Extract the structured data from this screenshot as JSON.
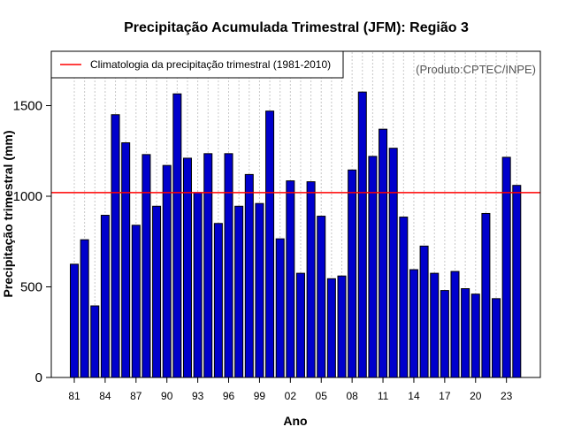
{
  "chart_data": {
    "type": "bar",
    "title": "Precipitação Acumulada Trimestral (JFM): Região 3",
    "xlabel": "Ano",
    "ylabel": "Precipitação trimestral (mm)",
    "source_note": "(Produto:CPTEC/INPE)",
    "ylim": [
      0,
      1800
    ],
    "yticks": [
      0,
      500,
      1000,
      1500
    ],
    "grid": "vertical dotted",
    "categories": [
      "1981",
      "1982",
      "1983",
      "1984",
      "1985",
      "1986",
      "1987",
      "1988",
      "1989",
      "1990",
      "1991",
      "1992",
      "1993",
      "1994",
      "1995",
      "1996",
      "1997",
      "1998",
      "1999",
      "2000",
      "2001",
      "2002",
      "2003",
      "2004",
      "2005",
      "2006",
      "2007",
      "2008",
      "2009",
      "2010",
      "2011",
      "2012",
      "2013",
      "2014",
      "2015",
      "2016",
      "2017",
      "2018",
      "2019",
      "2020",
      "2021",
      "2022",
      "2023",
      "2024"
    ],
    "xtick_labels": [
      {
        "index": 0,
        "label": "81"
      },
      {
        "index": 3,
        "label": "84"
      },
      {
        "index": 6,
        "label": "87"
      },
      {
        "index": 9,
        "label": "90"
      },
      {
        "index": 12,
        "label": "93"
      },
      {
        "index": 15,
        "label": "96"
      },
      {
        "index": 18,
        "label": "99"
      },
      {
        "index": 21,
        "label": "02"
      },
      {
        "index": 24,
        "label": "05"
      },
      {
        "index": 27,
        "label": "08"
      },
      {
        "index": 30,
        "label": "11"
      },
      {
        "index": 33,
        "label": "14"
      },
      {
        "index": 36,
        "label": "17"
      },
      {
        "index": 39,
        "label": "20"
      },
      {
        "index": 42,
        "label": "23"
      }
    ],
    "series": [
      {
        "name": "Precipitação trimestral",
        "color": "#0000CC",
        "values": [
          625,
          760,
          395,
          895,
          1450,
          1295,
          840,
          1230,
          945,
          1170,
          1565,
          1210,
          1020,
          1235,
          850,
          1235,
          945,
          1120,
          960,
          1470,
          765,
          1085,
          575,
          1080,
          890,
          545,
          560,
          1145,
          1575,
          1220,
          1370,
          1265,
          885,
          595,
          725,
          575,
          480,
          585,
          490,
          460,
          905,
          435,
          1215,
          1060
        ]
      }
    ],
    "reference_line": {
      "label": "Climatologia da precipitação trimestral (1981-2010)",
      "value": 1020,
      "color": "#FF0000"
    },
    "legend_position": "top-left"
  }
}
